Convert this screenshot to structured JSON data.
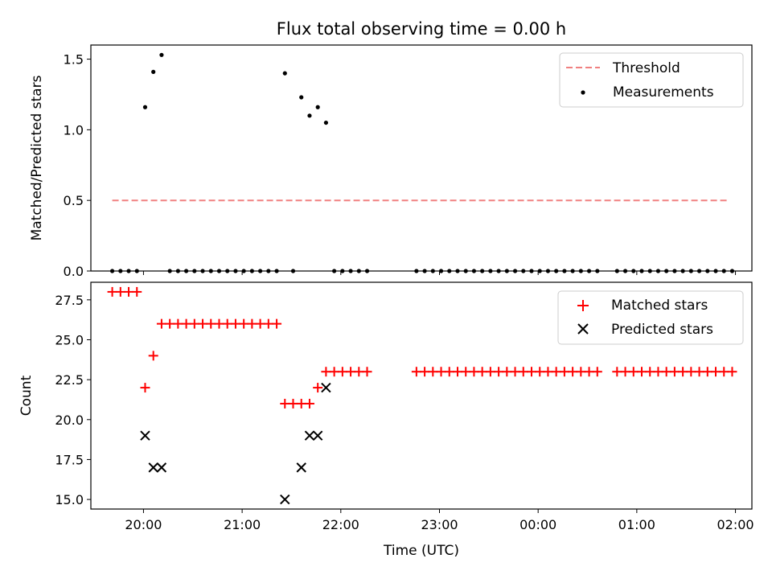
{
  "chart_data": [
    {
      "type": "scatter",
      "title": "Flux total observing time = 0.00 h",
      "xlabel": "",
      "ylabel": "Matched/Predicted stars",
      "ylim": [
        0,
        1.6
      ],
      "xlim": [
        "19:28",
        "02:10"
      ],
      "xticks": [
        "20:00",
        "21:00",
        "22:00",
        "23:00",
        "00:00",
        "01:00",
        "02:00"
      ],
      "show_x_tick_labels": false,
      "yticks": [
        {
          "value": 0.0,
          "label": "0.0"
        },
        {
          "value": 0.5,
          "label": "0.5"
        },
        {
          "value": 1.0,
          "label": "1.0"
        },
        {
          "value": 1.5,
          "label": "1.5"
        }
      ],
      "legend": {
        "position": "upper right",
        "entries": [
          "Threshold",
          "Measurements"
        ]
      },
      "threshold": {
        "name": "Threshold",
        "value": 0.5,
        "x_start": "19:41",
        "x_end": "01:56",
        "color": "#f08080",
        "style": "dashed"
      },
      "series": [
        {
          "name": "Measurements",
          "color": "#000000",
          "marker": "dot",
          "points": [
            {
              "x": "19:41",
              "y": 0
            },
            {
              "x": "19:46",
              "y": 0
            },
            {
              "x": "19:51",
              "y": 0
            },
            {
              "x": "19:56",
              "y": 0
            },
            {
              "x": "20:01",
              "y": 1.16
            },
            {
              "x": "20:06",
              "y": 1.41
            },
            {
              "x": "20:11",
              "y": 1.53
            },
            {
              "x": "20:16",
              "y": 0
            },
            {
              "x": "20:21",
              "y": 0
            },
            {
              "x": "20:26",
              "y": 0
            },
            {
              "x": "20:31",
              "y": 0
            },
            {
              "x": "20:36",
              "y": 0
            },
            {
              "x": "20:41",
              "y": 0
            },
            {
              "x": "20:46",
              "y": 0
            },
            {
              "x": "20:51",
              "y": 0
            },
            {
              "x": "20:56",
              "y": 0
            },
            {
              "x": "21:01",
              "y": 0
            },
            {
              "x": "21:06",
              "y": 0
            },
            {
              "x": "21:11",
              "y": 0
            },
            {
              "x": "21:16",
              "y": 0
            },
            {
              "x": "21:21",
              "y": 0
            },
            {
              "x": "21:26",
              "y": 1.4
            },
            {
              "x": "21:31",
              "y": 0
            },
            {
              "x": "21:36",
              "y": 1.23
            },
            {
              "x": "21:41",
              "y": 1.1
            },
            {
              "x": "21:46",
              "y": 1.16
            },
            {
              "x": "21:51",
              "y": 1.05
            },
            {
              "x": "21:56",
              "y": 0
            },
            {
              "x": "22:01",
              "y": 0
            },
            {
              "x": "22:06",
              "y": 0
            },
            {
              "x": "22:11",
              "y": 0
            },
            {
              "x": "22:16",
              "y": 0
            },
            {
              "x": "22:46",
              "y": 0
            },
            {
              "x": "22:51",
              "y": 0
            },
            {
              "x": "22:56",
              "y": 0
            },
            {
              "x": "23:01",
              "y": 0
            },
            {
              "x": "23:06",
              "y": 0
            },
            {
              "x": "23:11",
              "y": 0
            },
            {
              "x": "23:16",
              "y": 0
            },
            {
              "x": "23:21",
              "y": 0
            },
            {
              "x": "23:26",
              "y": 0
            },
            {
              "x": "23:31",
              "y": 0
            },
            {
              "x": "23:36",
              "y": 0
            },
            {
              "x": "23:41",
              "y": 0
            },
            {
              "x": "23:46",
              "y": 0
            },
            {
              "x": "23:51",
              "y": 0
            },
            {
              "x": "23:56",
              "y": 0
            },
            {
              "x": "00:01",
              "y": 0
            },
            {
              "x": "00:06",
              "y": 0
            },
            {
              "x": "00:11",
              "y": 0
            },
            {
              "x": "00:16",
              "y": 0
            },
            {
              "x": "00:21",
              "y": 0
            },
            {
              "x": "00:26",
              "y": 0
            },
            {
              "x": "00:31",
              "y": 0
            },
            {
              "x": "00:36",
              "y": 0
            },
            {
              "x": "00:48",
              "y": 0
            },
            {
              "x": "00:53",
              "y": 0
            },
            {
              "x": "00:58",
              "y": 0
            },
            {
              "x": "01:03",
              "y": 0
            },
            {
              "x": "01:08",
              "y": 0
            },
            {
              "x": "01:13",
              "y": 0
            },
            {
              "x": "01:18",
              "y": 0
            },
            {
              "x": "01:23",
              "y": 0
            },
            {
              "x": "01:28",
              "y": 0
            },
            {
              "x": "01:33",
              "y": 0
            },
            {
              "x": "01:38",
              "y": 0
            },
            {
              "x": "01:43",
              "y": 0
            },
            {
              "x": "01:48",
              "y": 0
            },
            {
              "x": "01:53",
              "y": 0
            },
            {
              "x": "01:58",
              "y": 0
            }
          ]
        }
      ]
    },
    {
      "type": "scatter",
      "title": "",
      "xlabel": "Time (UTC)",
      "ylabel": "Count",
      "ylim": [
        14.4,
        28.6
      ],
      "xlim": [
        "19:28",
        "02:10"
      ],
      "xticks": [
        "20:00",
        "21:00",
        "22:00",
        "23:00",
        "00:00",
        "01:00",
        "02:00"
      ],
      "show_x_tick_labels": true,
      "yticks": [
        {
          "value": 15.0,
          "label": "15.0"
        },
        {
          "value": 17.5,
          "label": "17.5"
        },
        {
          "value": 20.0,
          "label": "20.0"
        },
        {
          "value": 22.5,
          "label": "22.5"
        },
        {
          "value": 25.0,
          "label": "25.0"
        },
        {
          "value": 27.5,
          "label": "27.5"
        }
      ],
      "legend": {
        "position": "upper right",
        "entries": [
          "Matched stars",
          "Predicted stars"
        ]
      },
      "series": [
        {
          "name": "Matched stars",
          "color": "#ff0000",
          "marker": "plus",
          "points": [
            {
              "x": "19:41",
              "y": 28
            },
            {
              "x": "19:46",
              "y": 28
            },
            {
              "x": "19:51",
              "y": 28
            },
            {
              "x": "19:56",
              "y": 28
            },
            {
              "x": "20:01",
              "y": 22
            },
            {
              "x": "20:06",
              "y": 24
            },
            {
              "x": "20:11",
              "y": 26
            },
            {
              "x": "20:16",
              "y": 26
            },
            {
              "x": "20:21",
              "y": 26
            },
            {
              "x": "20:26",
              "y": 26
            },
            {
              "x": "20:31",
              "y": 26
            },
            {
              "x": "20:36",
              "y": 26
            },
            {
              "x": "20:41",
              "y": 26
            },
            {
              "x": "20:46",
              "y": 26
            },
            {
              "x": "20:51",
              "y": 26
            },
            {
              "x": "20:56",
              "y": 26
            },
            {
              "x": "21:01",
              "y": 26
            },
            {
              "x": "21:06",
              "y": 26
            },
            {
              "x": "21:11",
              "y": 26
            },
            {
              "x": "21:16",
              "y": 26
            },
            {
              "x": "21:21",
              "y": 26
            },
            {
              "x": "21:26",
              "y": 21
            },
            {
              "x": "21:31",
              "y": 21
            },
            {
              "x": "21:36",
              "y": 21
            },
            {
              "x": "21:41",
              "y": 21
            },
            {
              "x": "21:46",
              "y": 22
            },
            {
              "x": "21:51",
              "y": 23
            },
            {
              "x": "21:56",
              "y": 23
            },
            {
              "x": "22:01",
              "y": 23
            },
            {
              "x": "22:06",
              "y": 23
            },
            {
              "x": "22:11",
              "y": 23
            },
            {
              "x": "22:16",
              "y": 23
            },
            {
              "x": "22:46",
              "y": 23
            },
            {
              "x": "22:51",
              "y": 23
            },
            {
              "x": "22:56",
              "y": 23
            },
            {
              "x": "23:01",
              "y": 23
            },
            {
              "x": "23:06",
              "y": 23
            },
            {
              "x": "23:11",
              "y": 23
            },
            {
              "x": "23:16",
              "y": 23
            },
            {
              "x": "23:21",
              "y": 23
            },
            {
              "x": "23:26",
              "y": 23
            },
            {
              "x": "23:31",
              "y": 23
            },
            {
              "x": "23:36",
              "y": 23
            },
            {
              "x": "23:41",
              "y": 23
            },
            {
              "x": "23:46",
              "y": 23
            },
            {
              "x": "23:51",
              "y": 23
            },
            {
              "x": "23:56",
              "y": 23
            },
            {
              "x": "00:01",
              "y": 23
            },
            {
              "x": "00:06",
              "y": 23
            },
            {
              "x": "00:11",
              "y": 23
            },
            {
              "x": "00:16",
              "y": 23
            },
            {
              "x": "00:21",
              "y": 23
            },
            {
              "x": "00:26",
              "y": 23
            },
            {
              "x": "00:31",
              "y": 23
            },
            {
              "x": "00:36",
              "y": 23
            },
            {
              "x": "00:48",
              "y": 23
            },
            {
              "x": "00:53",
              "y": 23
            },
            {
              "x": "00:58",
              "y": 23
            },
            {
              "x": "01:03",
              "y": 23
            },
            {
              "x": "01:08",
              "y": 23
            },
            {
              "x": "01:13",
              "y": 23
            },
            {
              "x": "01:18",
              "y": 23
            },
            {
              "x": "01:23",
              "y": 23
            },
            {
              "x": "01:28",
              "y": 23
            },
            {
              "x": "01:33",
              "y": 23
            },
            {
              "x": "01:38",
              "y": 23
            },
            {
              "x": "01:43",
              "y": 23
            },
            {
              "x": "01:48",
              "y": 23
            },
            {
              "x": "01:53",
              "y": 23
            },
            {
              "x": "01:58",
              "y": 23
            }
          ]
        },
        {
          "name": "Predicted stars",
          "color": "#000000",
          "marker": "x",
          "points": [
            {
              "x": "20:01",
              "y": 19
            },
            {
              "x": "20:06",
              "y": 17
            },
            {
              "x": "20:11",
              "y": 17
            },
            {
              "x": "21:26",
              "y": 15
            },
            {
              "x": "21:36",
              "y": 17
            },
            {
              "x": "21:41",
              "y": 19
            },
            {
              "x": "21:46",
              "y": 19
            },
            {
              "x": "21:51",
              "y": 22
            }
          ]
        }
      ]
    }
  ]
}
